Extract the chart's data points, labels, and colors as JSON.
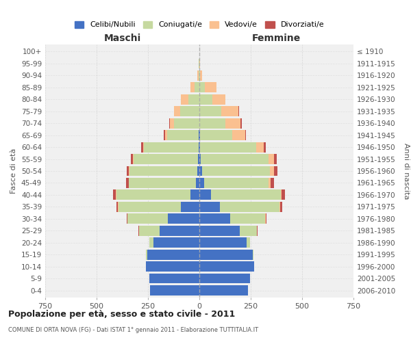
{
  "age_groups": [
    "100+",
    "95-99",
    "90-94",
    "85-89",
    "80-84",
    "75-79",
    "70-74",
    "65-69",
    "60-64",
    "55-59",
    "50-54",
    "45-49",
    "40-44",
    "35-39",
    "30-34",
    "25-29",
    "20-24",
    "15-19",
    "10-14",
    "5-9",
    "0-4"
  ],
  "birth_years": [
    "≤ 1910",
    "1911-1915",
    "1916-1920",
    "1921-1925",
    "1926-1930",
    "1931-1935",
    "1936-1940",
    "1941-1945",
    "1946-1950",
    "1951-1955",
    "1956-1960",
    "1961-1965",
    "1966-1970",
    "1971-1975",
    "1976-1980",
    "1981-1985",
    "1986-1990",
    "1991-1995",
    "1996-2000",
    "2001-2005",
    "2006-2010"
  ],
  "males": {
    "celibe": [
      0,
      0,
      0,
      0,
      0,
      0,
      0,
      2,
      4,
      6,
      10,
      18,
      45,
      90,
      155,
      195,
      225,
      255,
      260,
      245,
      240
    ],
    "coniugato": [
      1,
      2,
      5,
      22,
      55,
      95,
      125,
      155,
      265,
      315,
      330,
      325,
      360,
      305,
      195,
      100,
      18,
      4,
      0,
      0,
      0
    ],
    "vedovo": [
      0,
      1,
      5,
      22,
      35,
      28,
      18,
      10,
      5,
      3,
      3,
      2,
      2,
      1,
      0,
      0,
      0,
      0,
      0,
      0,
      0
    ],
    "divorziato": [
      0,
      0,
      0,
      0,
      0,
      2,
      5,
      5,
      8,
      10,
      10,
      12,
      12,
      8,
      4,
      2,
      0,
      0,
      0,
      0,
      0
    ]
  },
  "females": {
    "nubile": [
      0,
      0,
      0,
      0,
      0,
      0,
      0,
      2,
      4,
      6,
      12,
      22,
      55,
      100,
      150,
      195,
      230,
      260,
      265,
      245,
      235
    ],
    "coniugata": [
      0,
      1,
      4,
      28,
      62,
      108,
      128,
      158,
      272,
      332,
      332,
      315,
      340,
      290,
      170,
      85,
      18,
      4,
      0,
      0,
      0
    ],
    "vedova": [
      1,
      3,
      10,
      55,
      65,
      82,
      72,
      62,
      36,
      26,
      18,
      10,
      5,
      3,
      2,
      1,
      0,
      0,
      0,
      0,
      0
    ],
    "divorziata": [
      0,
      0,
      0,
      0,
      0,
      2,
      5,
      5,
      10,
      12,
      18,
      15,
      15,
      10,
      5,
      2,
      0,
      0,
      0,
      0,
      0
    ]
  },
  "color_celibe": "#4472c4",
  "color_coniugato": "#c6d9a0",
  "color_vedovo": "#fac090",
  "color_divorziato": "#c0504d",
  "title": "Popolazione per età, sesso e stato civile - 2011",
  "subtitle": "COMUNE DI ORTA NOVA (FG) - Dati ISTAT 1° gennaio 2011 - Elaborazione TUTTITALIA.IT",
  "xlabel_left": "Maschi",
  "xlabel_right": "Femmine",
  "ylabel_left": "Fasce di età",
  "ylabel_right": "Anni di nascita",
  "xlim": 750,
  "legend_labels": [
    "Celibi/Nubili",
    "Coniugati/e",
    "Vedovi/e",
    "Divorziati/e"
  ],
  "bg_color": "#ffffff",
  "grid_color": "#d0d0d0",
  "plot_bg": "#f0f0f0"
}
